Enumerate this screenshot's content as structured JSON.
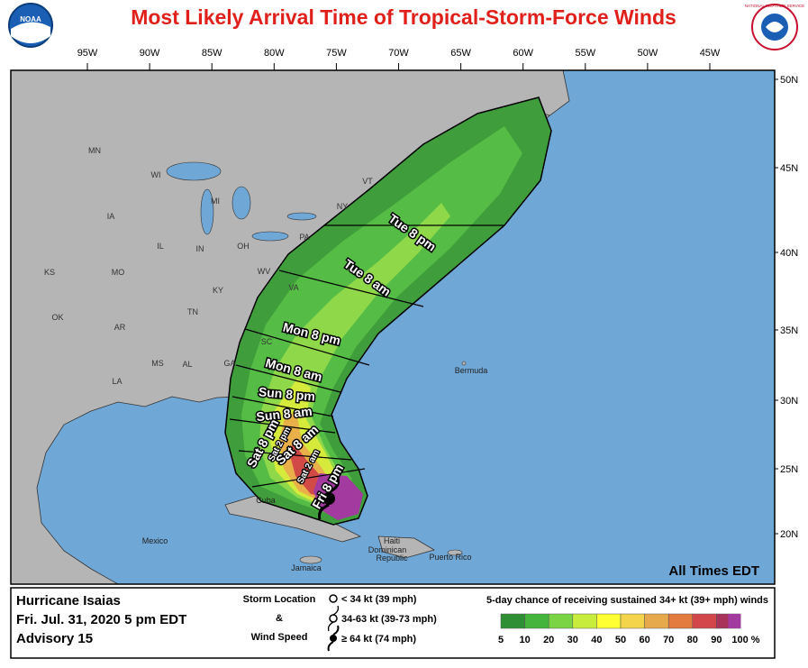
{
  "header": {
    "title": "Most Likely Arrival Time of Tropical-Storm-Force Winds",
    "noaa_logo": "NOAA",
    "nws_logo": "NATIONAL WEATHER SERVICE"
  },
  "map": {
    "longitudes": [
      "95W",
      "90W",
      "85W",
      "80W",
      "75W",
      "70W",
      "65W",
      "60W",
      "55W",
      "50W",
      "45W"
    ],
    "latitudes": [
      "50N",
      "45N",
      "40N",
      "35N",
      "30N",
      "25N",
      "20N"
    ],
    "states": [
      "MN",
      "WI",
      "MI",
      "IA",
      "IL",
      "IN",
      "OH",
      "PA",
      "NY",
      "VT",
      "KS",
      "MO",
      "KY",
      "WV",
      "VA",
      "OK",
      "AR",
      "TN",
      "SC",
      "MS",
      "AL",
      "GA",
      "LA"
    ],
    "places": [
      "Bermuda",
      "Cuba",
      "Mexico",
      "Jamaica",
      "Haiti",
      "Dominican",
      "Republic",
      "Puerto Rico"
    ],
    "arrival_times": [
      "Tue 8 pm",
      "Tue 8 am",
      "Mon 8 pm",
      "Mon 8 am",
      "Sun 8 pm",
      "Sun 8 am",
      "Sat 8 pm",
      "Sat 2 pm",
      "Sat 8 am",
      "Sat 2 am",
      "Fri 8 pm"
    ],
    "footnote": "All Times EDT"
  },
  "legend": {
    "storm_name": "Hurricane Isaias",
    "issued": "Fri. Jul. 31, 2020  5 pm EDT",
    "advisory": "Advisory 15",
    "location_heading": [
      "Storm Location",
      "&",
      "Wind Speed"
    ],
    "intensities": [
      "< 34 kt (39 mph)",
      "34-63 kt (39-73 mph)",
      "≥ 64 kt (74 mph)"
    ],
    "scale_title": "5-day chance of receiving sustained 34+ kt (39+ mph) winds",
    "scale_ticks": [
      "5",
      "10",
      "20",
      "30",
      "40",
      "50",
      "60",
      "70",
      "80",
      "90",
      "100 %"
    ]
  }
}
